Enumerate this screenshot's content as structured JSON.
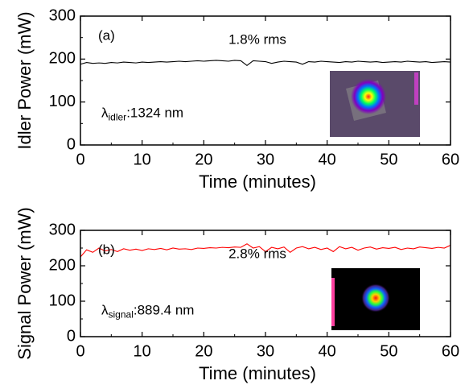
{
  "chart_data": [
    {
      "type": "line",
      "label": "(a)",
      "annotation": "1.8% rms",
      "wavelength": {
        "symbol": "λ",
        "subscript": "idler",
        "text": ":1324 nm"
      },
      "xlabel": "Time (minutes)",
      "ylabel": "Idler Power (mW)",
      "color": "#000000",
      "x": [
        0,
        1,
        2,
        3,
        4,
        5,
        6,
        7,
        8,
        9,
        10,
        11,
        12,
        13,
        14,
        15,
        16,
        17,
        18,
        19,
        20,
        21,
        22,
        23,
        24,
        25,
        26,
        27,
        28,
        29,
        30,
        31,
        32,
        33,
        34,
        35,
        36,
        37,
        38,
        39,
        40,
        41,
        42,
        43,
        44,
        45,
        46,
        47,
        48,
        49,
        50,
        51,
        52,
        53,
        54,
        55,
        56,
        57,
        58,
        59,
        60
      ],
      "values": [
        188,
        192,
        190,
        191,
        190,
        192,
        191,
        193,
        192,
        191,
        193,
        192,
        193,
        194,
        193,
        194,
        195,
        194,
        195,
        196,
        195,
        196,
        197,
        196,
        195,
        197,
        196,
        185,
        196,
        195,
        194,
        190,
        193,
        195,
        194,
        193,
        188,
        194,
        193,
        195,
        194,
        193,
        192,
        194,
        193,
        195,
        194,
        193,
        194,
        192,
        193,
        194,
        193,
        195,
        194,
        193,
        194,
        192,
        193,
        194,
        193
      ],
      "xlim": [
        0,
        60
      ],
      "xticks": [
        0,
        10,
        20,
        30,
        40,
        50,
        60
      ],
      "ylim": [
        0,
        300
      ],
      "yticks": [
        0,
        100,
        200,
        300
      ]
    },
    {
      "type": "line",
      "label": "(b)",
      "annotation": "2.8% rms",
      "wavelength": {
        "symbol": "λ",
        "subscript": "signal",
        "text": ":889.4 nm"
      },
      "xlabel": "Time (minutes)",
      "ylabel": "Signal Power (mW)",
      "color": "#ff0000",
      "x": [
        0,
        1,
        2,
        3,
        4,
        5,
        6,
        7,
        8,
        9,
        10,
        11,
        12,
        13,
        14,
        15,
        16,
        17,
        18,
        19,
        20,
        21,
        22,
        23,
        24,
        25,
        26,
        27,
        28,
        29,
        30,
        31,
        32,
        33,
        34,
        35,
        36,
        37,
        38,
        39,
        40,
        41,
        42,
        43,
        44,
        45,
        46,
        47,
        48,
        49,
        50,
        51,
        52,
        53,
        54,
        55,
        56,
        57,
        58,
        59,
        60
      ],
      "values": [
        225,
        245,
        238,
        250,
        242,
        246,
        240,
        248,
        244,
        247,
        243,
        248,
        246,
        249,
        245,
        250,
        247,
        248,
        246,
        250,
        249,
        251,
        250,
        252,
        251,
        253,
        252,
        262,
        250,
        254,
        240,
        252,
        248,
        253,
        238,
        250,
        254,
        248,
        252,
        246,
        250,
        240,
        254,
        248,
        252,
        244,
        250,
        253,
        247,
        251,
        249,
        252,
        246,
        250,
        248,
        253,
        251,
        249,
        252,
        250,
        258
      ],
      "xlim": [
        0,
        60
      ],
      "xticks": [
        0,
        10,
        20,
        30,
        40,
        50,
        60
      ],
      "ylim": [
        0,
        300
      ],
      "yticks": [
        0,
        100,
        200,
        300
      ]
    }
  ]
}
